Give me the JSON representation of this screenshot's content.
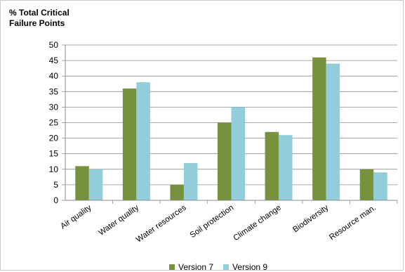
{
  "chart_data": {
    "type": "bar",
    "title": "",
    "ylabel_lines": [
      "% Total Critical",
      "Failure Points"
    ],
    "xlabel": "",
    "categories": [
      "Air quality",
      "Water quality",
      "Water resources",
      "Soil protection",
      "Climate change",
      "Biodiversity",
      "Resource man."
    ],
    "series": [
      {
        "name": "Version 7",
        "values": [
          11,
          36,
          5,
          25,
          22,
          46,
          10
        ],
        "color": "#76923c"
      },
      {
        "name": "Version 9",
        "values": [
          10,
          38,
          12,
          30,
          21,
          44,
          9
        ],
        "color": "#92cddc"
      }
    ],
    "ylim": [
      0,
      50
    ],
    "yticks": [
      0,
      5,
      10,
      15,
      20,
      25,
      30,
      35,
      40,
      45,
      50
    ],
    "grid": true,
    "legend_position": "bottom"
  }
}
